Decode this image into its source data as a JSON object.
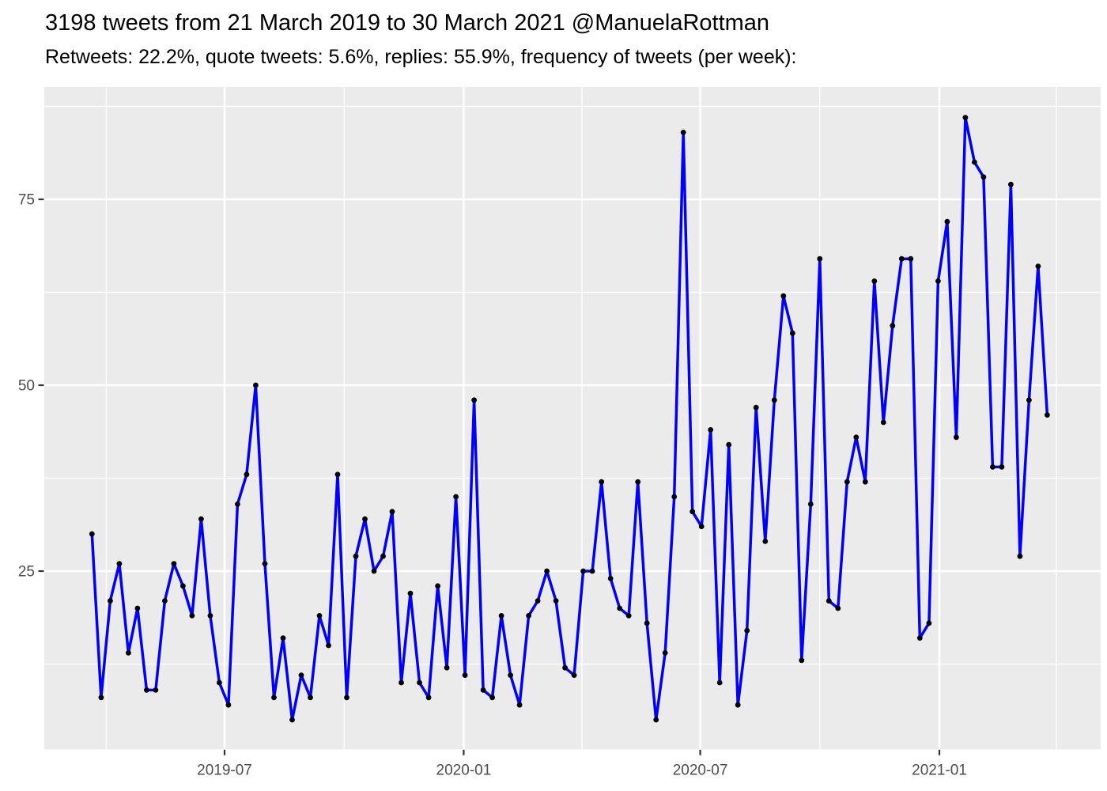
{
  "title": "3198 tweets from 21 March 2019 to 30 March 2021 @ManuelaRottman",
  "subtitle": "Retweets: 22.2%, quote tweets: 5.6%, replies: 55.9%, frequency of tweets (per week):",
  "chart_data": {
    "type": "line",
    "series_name": "tweets per week",
    "total_tweets": 3198,
    "x_unit": "week",
    "x_start_week": "2019-03-21",
    "x_step_days": 7,
    "values": [
      30,
      8,
      21,
      26,
      14,
      20,
      9,
      9,
      21,
      26,
      23,
      19,
      32,
      19,
      10,
      7,
      34,
      38,
      50,
      26,
      8,
      16,
      5,
      11,
      8,
      19,
      15,
      38,
      8,
      27,
      32,
      25,
      27,
      33,
      10,
      22,
      10,
      8,
      23,
      12,
      35,
      11,
      48,
      9,
      8,
      19,
      11,
      7,
      19,
      21,
      25,
      21,
      12,
      11,
      25,
      25,
      37,
      24,
      20,
      19,
      37,
      18,
      5,
      14,
      35,
      84,
      33,
      31,
      44,
      10,
      42,
      7,
      17,
      47,
      29,
      48,
      62,
      57,
      13,
      34,
      67,
      21,
      20,
      37,
      43,
      37,
      64,
      45,
      58,
      67,
      67,
      16,
      18,
      64,
      72,
      43,
      86,
      80,
      78,
      39,
      39,
      77,
      27,
      48,
      66,
      46
    ],
    "xlabel": "",
    "ylabel": "",
    "x_tick_labels": [
      "2019-07",
      "2020-01",
      "2020-07",
      "2021-01"
    ],
    "x_tick_dates": [
      "2019-07-01",
      "2020-01-01",
      "2020-07-01",
      "2021-01-01"
    ],
    "x_minor_dates": [
      "2019-04-01",
      "2019-10-01",
      "2020-04-01",
      "2020-10-01",
      "2021-04-01"
    ],
    "y_tick_values": [
      25,
      50,
      75
    ],
    "y_tick_labels": [
      "25",
      "50",
      "75"
    ],
    "y_minor_values": [
      12.5,
      37.5,
      62.5,
      87.5
    ],
    "ylim": [
      1,
      90
    ],
    "grid": "white major and minor gridlines on gray panel",
    "legend_position": "none",
    "colors": {
      "line": "#0000FF",
      "point": "#000000",
      "panel_background": "#EBEBEB",
      "gridline": "#FFFFFF",
      "axis_text": "#4D4D4D",
      "tick_mark": "#333333",
      "title_text": "#000000"
    }
  }
}
